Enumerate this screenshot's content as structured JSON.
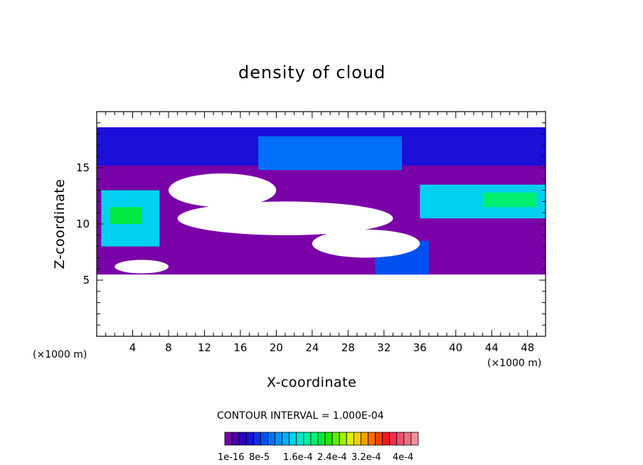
{
  "chart_data": {
    "type": "heatmap",
    "title": "density of cloud",
    "xlabel": "X-coordinate",
    "ylabel": "Z-coordinate",
    "x_unit": "(×1000 m)",
    "y_unit": "(×1000 m)",
    "xlim": [
      0,
      50
    ],
    "ylim": [
      0,
      20
    ],
    "x_ticks": [
      4,
      8,
      12,
      16,
      20,
      24,
      28,
      32,
      36,
      40,
      44,
      48
    ],
    "y_ticks": [
      5,
      10,
      15
    ],
    "contour_interval_text": "CONTOUR INTERVAL = 1.000E-04",
    "colorbar": {
      "labels": [
        "1e-16",
        "8e-5",
        "1.6e-4",
        "2.4e-4",
        "3.2e-4",
        "4e-4"
      ],
      "colors": [
        "#7a00a8",
        "#4800a8",
        "#2a00c0",
        "#1a10d8",
        "#0a30e8",
        "#0050f0",
        "#0070f8",
        "#0090f8",
        "#00b0f8",
        "#00d0f0",
        "#00e8d0",
        "#00f0a0",
        "#00f070",
        "#00e840",
        "#20e800",
        "#60f000",
        "#a0f000",
        "#e0f000",
        "#f8d000",
        "#f8a000",
        "#f87000",
        "#f84000",
        "#f81818",
        "#f03050",
        "#f05070",
        "#f07080",
        "#f090a0"
      ]
    },
    "regions": [
      {
        "level": 0,
        "x": [
          0,
          50
        ],
        "z": [
          5.5,
          18.6
        ]
      },
      {
        "level": 3,
        "x": [
          0,
          50
        ],
        "z": [
          15.2,
          18.6
        ]
      },
      {
        "level": 6,
        "x": [
          18,
          34
        ],
        "z": [
          14.8,
          17.8
        ]
      },
      {
        "level": 9,
        "x": [
          0.5,
          7
        ],
        "z": [
          8,
          13
        ]
      },
      {
        "level": 13,
        "x": [
          1.5,
          5
        ],
        "z": [
          10,
          11.5
        ]
      },
      {
        "level": 9,
        "x": [
          36,
          50
        ],
        "z": [
          10.5,
          13.5
        ]
      },
      {
        "level": 12,
        "x": [
          43,
          49
        ],
        "z": [
          11.5,
          12.8
        ]
      },
      {
        "level": 5,
        "x": [
          31,
          37
        ],
        "z": [
          5.5,
          8.5
        ]
      }
    ],
    "gaps": [
      {
        "x": [
          8,
          20
        ],
        "z": [
          11.5,
          14.5
        ]
      },
      {
        "x": [
          9,
          33
        ],
        "z": [
          9,
          12
        ]
      },
      {
        "x": [
          24,
          36
        ],
        "z": [
          7,
          9.5
        ]
      },
      {
        "x": [
          2,
          8
        ],
        "z": [
          5.6,
          6.8
        ]
      }
    ]
  }
}
